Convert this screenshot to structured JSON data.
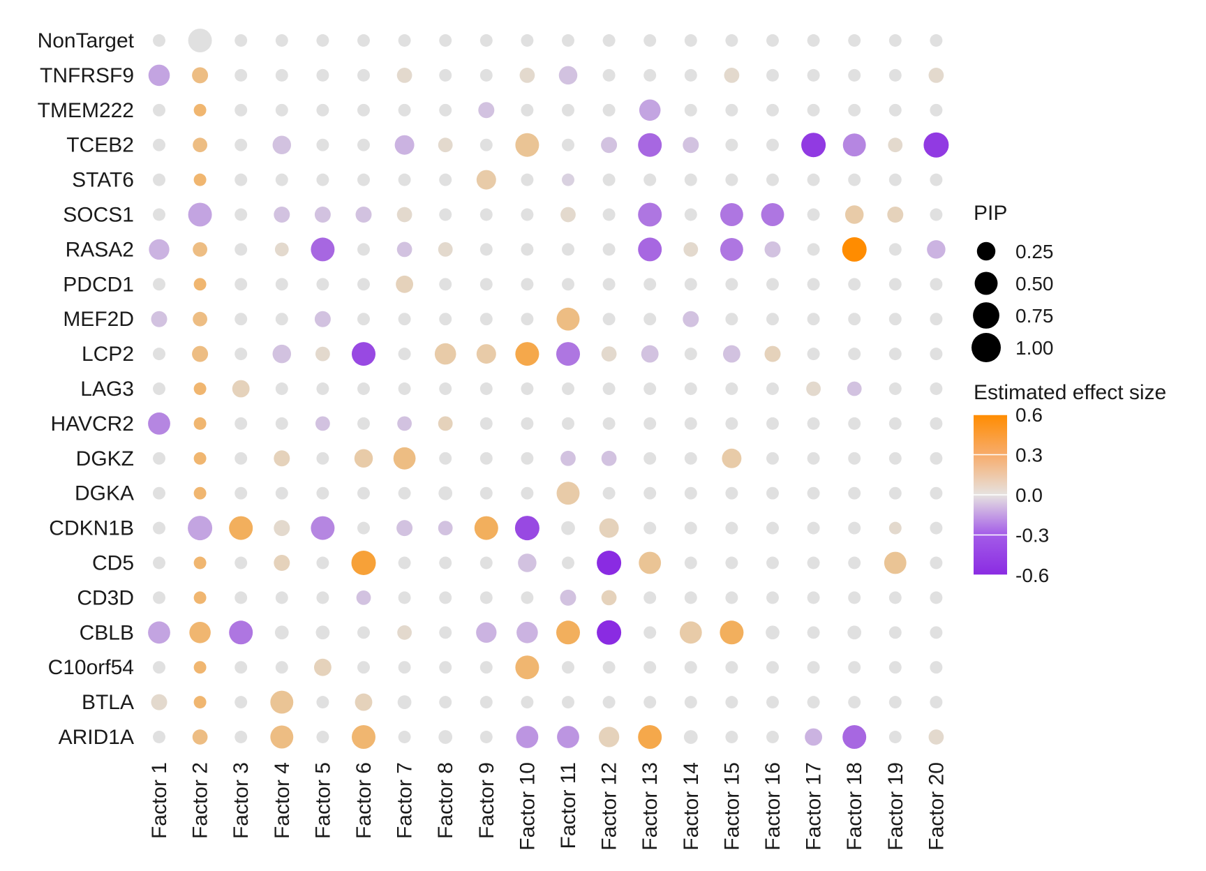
{
  "chart_data": {
    "type": "dot-heatmap",
    "x_categories": [
      "Factor 1",
      "Factor 2",
      "Factor 3",
      "Factor 4",
      "Factor 5",
      "Factor 6",
      "Factor 7",
      "Factor 8",
      "Factor 9",
      "Factor 10",
      "Factor 11",
      "Factor 12",
      "Factor 13",
      "Factor 14",
      "Factor 15",
      "Factor 16",
      "Factor 17",
      "Factor 18",
      "Factor 19",
      "Factor 20"
    ],
    "y_categories": [
      "NonTarget",
      "TNFRSF9",
      "TMEM222",
      "TCEB2",
      "STAT6",
      "SOCS1",
      "RASA2",
      "PDCD1",
      "MEF2D",
      "LCP2",
      "LAG3",
      "HAVCR2",
      "DGKZ",
      "DGKA",
      "CDKN1B",
      "CD5",
      "CD3D",
      "CBLB",
      "C10orf54",
      "BTLA",
      "ARID1A"
    ],
    "pip": [
      [
        0.05,
        0.55,
        0.05,
        0.05,
        0.05,
        0.05,
        0.05,
        0.05,
        0.05,
        0.05,
        0.05,
        0.05,
        0.05,
        0.05,
        0.05,
        0.05,
        0.05,
        0.05,
        0.05,
        0.05
      ],
      [
        0.4,
        0.15,
        0.05,
        0.05,
        0.05,
        0.05,
        0.12,
        0.05,
        0.05,
        0.12,
        0.25,
        0.05,
        0.05,
        0.05,
        0.12,
        0.05,
        0.05,
        0.05,
        0.05,
        0.12
      ],
      [
        0.05,
        0.05,
        0.05,
        0.05,
        0.05,
        0.05,
        0.05,
        0.05,
        0.15,
        0.05,
        0.05,
        0.05,
        0.4,
        0.05,
        0.05,
        0.05,
        0.05,
        0.05,
        0.05,
        0.05
      ],
      [
        0.05,
        0.1,
        0.05,
        0.25,
        0.05,
        0.05,
        0.3,
        0.1,
        0.05,
        0.55,
        0.05,
        0.15,
        0.55,
        0.15,
        0.05,
        0.05,
        0.6,
        0.5,
        0.1,
        0.65
      ],
      [
        0.05,
        0.05,
        0.05,
        0.05,
        0.05,
        0.05,
        0.05,
        0.05,
        0.3,
        0.05,
        0.05,
        0.05,
        0.05,
        0.05,
        0.05,
        0.05,
        0.05,
        0.05,
        0.05,
        0.05
      ],
      [
        0.05,
        0.55,
        0.05,
        0.15,
        0.15,
        0.15,
        0.12,
        0.05,
        0.05,
        0.05,
        0.12,
        0.05,
        0.55,
        0.05,
        0.5,
        0.5,
        0.05,
        0.25,
        0.15,
        0.05
      ],
      [
        0.35,
        0.1,
        0.05,
        0.08,
        0.55,
        0.05,
        0.12,
        0.1,
        0.05,
        0.05,
        0.05,
        0.05,
        0.55,
        0.1,
        0.5,
        0.15,
        0.05,
        0.6,
        0.05,
        0.25
      ],
      [
        0.05,
        0.05,
        0.05,
        0.05,
        0.05,
        0.05,
        0.2,
        0.05,
        0.05,
        0.05,
        0.05,
        0.05,
        0.05,
        0.05,
        0.05,
        0.05,
        0.05,
        0.05,
        0.05,
        0.05
      ],
      [
        0.15,
        0.1,
        0.05,
        0.05,
        0.15,
        0.05,
        0.05,
        0.05,
        0.05,
        0.05,
        0.5,
        0.05,
        0.05,
        0.15,
        0.05,
        0.05,
        0.05,
        0.05,
        0.05,
        0.05
      ],
      [
        0.05,
        0.15,
        0.05,
        0.25,
        0.1,
        0.55,
        0.05,
        0.4,
        0.3,
        0.55,
        0.55,
        0.12,
        0.2,
        0.05,
        0.2,
        0.15,
        0.05,
        0.05,
        0.05,
        0.05
      ],
      [
        0.05,
        0.05,
        0.2,
        0.05,
        0.05,
        0.05,
        0.05,
        0.05,
        0.05,
        0.05,
        0.05,
        0.05,
        0.05,
        0.05,
        0.05,
        0.05,
        0.1,
        0.1,
        0.05,
        0.05
      ],
      [
        0.45,
        0.05,
        0.05,
        0.05,
        0.1,
        0.05,
        0.1,
        0.1,
        0.05,
        0.05,
        0.05,
        0.05,
        0.05,
        0.05,
        0.05,
        0.05,
        0.05,
        0.05,
        0.05,
        0.05
      ],
      [
        0.05,
        0.05,
        0.05,
        0.15,
        0.05,
        0.25,
        0.45,
        0.05,
        0.05,
        0.05,
        0.12,
        0.12,
        0.05,
        0.05,
        0.3,
        0.05,
        0.05,
        0.05,
        0.05,
        0.05
      ],
      [
        0.05,
        0.05,
        0.05,
        0.05,
        0.05,
        0.05,
        0.05,
        0.08,
        0.05,
        0.05,
        0.5,
        0.05,
        0.05,
        0.05,
        0.05,
        0.05,
        0.05,
        0.05,
        0.05,
        0.05
      ],
      [
        0.05,
        0.6,
        0.55,
        0.15,
        0.55,
        0.05,
        0.15,
        0.1,
        0.55,
        0.6,
        0.08,
        0.3,
        0.05,
        0.05,
        0.05,
        0.05,
        0.05,
        0.05,
        0.05,
        0.05
      ],
      [
        0.05,
        0.05,
        0.05,
        0.15,
        0.05,
        0.6,
        0.05,
        0.05,
        0.05,
        0.25,
        0.05,
        0.6,
        0.45,
        0.05,
        0.05,
        0.05,
        0.05,
        0.05,
        0.45,
        0.05
      ],
      [
        0.05,
        0.05,
        0.05,
        0.05,
        0.05,
        0.1,
        0.05,
        0.05,
        0.05,
        0.05,
        0.15,
        0.12,
        0.05,
        0.05,
        0.05,
        0.05,
        0.05,
        0.05,
        0.05,
        0.05
      ],
      [
        0.45,
        0.4,
        0.55,
        0.08,
        0.08,
        0.05,
        0.1,
        0.05,
        0.35,
        0.4,
        0.55,
        0.6,
        0.05,
        0.45,
        0.55,
        0.08,
        0.05,
        0.08,
        0.05,
        0.05
      ],
      [
        0.05,
        0.05,
        0.05,
        0.05,
        0.2,
        0.05,
        0.05,
        0.05,
        0.05,
        0.55,
        0.05,
        0.05,
        0.05,
        0.05,
        0.05,
        0.05,
        0.05,
        0.05,
        0.05,
        0.05
      ],
      [
        0.15,
        0.05,
        0.05,
        0.5,
        0.05,
        0.2,
        0.08,
        0.05,
        0.05,
        0.05,
        0.05,
        0.05,
        0.05,
        0.05,
        0.05,
        0.05,
        0.05,
        0.05,
        0.05,
        0.05
      ],
      [
        0.05,
        0.12,
        0.05,
        0.5,
        0.05,
        0.55,
        0.05,
        0.08,
        0.05,
        0.45,
        0.45,
        0.35,
        0.55,
        0.08,
        0.05,
        0.05,
        0.2,
        0.55,
        0.05,
        0.12
      ]
    ],
    "effect": [
      [
        0,
        0,
        0,
        0,
        0,
        0,
        0,
        0,
        0,
        0,
        0,
        0,
        0,
        0,
        0,
        0,
        0,
        0,
        0,
        0
      ],
      [
        -0.2,
        0.25,
        0,
        0,
        0,
        0,
        0.05,
        0,
        0,
        0.05,
        -0.1,
        0,
        0,
        0,
        0.05,
        0,
        0,
        0,
        0,
        0.05
      ],
      [
        0,
        0.3,
        0,
        0,
        0,
        0,
        0,
        0,
        -0.1,
        0,
        0,
        0,
        -0.2,
        0,
        0,
        0,
        0,
        0,
        0,
        0
      ],
      [
        0,
        0.25,
        0,
        -0.1,
        0,
        0,
        -0.15,
        0.05,
        0,
        0.2,
        0,
        -0.1,
        -0.4,
        -0.1,
        0,
        0,
        -0.55,
        -0.3,
        0.05,
        -0.55
      ],
      [
        0,
        0.3,
        0,
        0,
        0,
        0,
        0,
        0,
        0.15,
        0,
        -0.05,
        0,
        0,
        0,
        0,
        0,
        0,
        0,
        0,
        0
      ],
      [
        0,
        -0.2,
        0,
        -0.1,
        -0.1,
        -0.1,
        0.05,
        0,
        0,
        0,
        0.05,
        0,
        -0.35,
        0,
        -0.35,
        -0.35,
        0,
        0.15,
        0.1,
        0
      ],
      [
        -0.15,
        0.25,
        0,
        0.05,
        -0.4,
        0,
        -0.1,
        0.05,
        0,
        0,
        0,
        0,
        -0.4,
        0.05,
        -0.35,
        -0.1,
        0,
        0.6,
        0,
        -0.15
      ],
      [
        0,
        0.3,
        0,
        0,
        0,
        0,
        0.1,
        0,
        0,
        0,
        0,
        0,
        0,
        0,
        0,
        0,
        0,
        0,
        0,
        0
      ],
      [
        -0.1,
        0.25,
        0,
        0,
        -0.1,
        0,
        0,
        0,
        0,
        0,
        0.25,
        0,
        0,
        -0.1,
        0,
        0,
        0,
        0,
        0,
        0
      ],
      [
        0,
        0.25,
        0,
        -0.1,
        0.05,
        -0.5,
        0,
        0.15,
        0.15,
        0.4,
        -0.35,
        0.05,
        -0.1,
        0,
        -0.1,
        0.1,
        0,
        0,
        0,
        0
      ],
      [
        0,
        0.3,
        0.1,
        0,
        0,
        0,
        0,
        0,
        0,
        0,
        0,
        0,
        0,
        0,
        0,
        0,
        0.05,
        -0.1,
        0,
        0
      ],
      [
        -0.3,
        0.3,
        0,
        0,
        -0.1,
        0,
        -0.1,
        0.1,
        0,
        0,
        0,
        0,
        0,
        0,
        0,
        0,
        0,
        0,
        0,
        0
      ],
      [
        0,
        0.3,
        0,
        0.1,
        0,
        0.15,
        0.25,
        0,
        0,
        0,
        -0.1,
        -0.1,
        0,
        0,
        0.15,
        0,
        0,
        0,
        0,
        0
      ],
      [
        0,
        0.3,
        0,
        0,
        0,
        0,
        0,
        0,
        0,
        0,
        0.15,
        0,
        0,
        0,
        0,
        0,
        0,
        0,
        0,
        0
      ],
      [
        0,
        -0.2,
        0.35,
        0.05,
        -0.3,
        0,
        -0.1,
        -0.1,
        0.35,
        -0.5,
        0,
        0.1,
        0,
        0,
        0,
        0,
        0,
        0,
        0.05,
        0
      ],
      [
        0,
        0.3,
        0,
        0.1,
        0,
        0.45,
        0,
        0,
        0,
        -0.1,
        0,
        -0.6,
        0.2,
        0,
        0,
        0,
        0,
        0,
        0.2,
        0
      ],
      [
        0,
        0.3,
        0,
        0,
        0,
        -0.1,
        0,
        0,
        0,
        0,
        -0.1,
        0.1,
        0,
        0,
        0,
        0,
        0,
        0,
        0,
        0
      ],
      [
        -0.2,
        0.3,
        -0.35,
        0,
        0,
        0,
        0.05,
        0,
        -0.15,
        -0.15,
        0.35,
        -0.6,
        0,
        0.15,
        0.35,
        0,
        0,
        0,
        0,
        0
      ],
      [
        0,
        0.3,
        0,
        0,
        0.1,
        0,
        0,
        0,
        0,
        0.3,
        0,
        0,
        0,
        0,
        0,
        0,
        0,
        0,
        0,
        0
      ],
      [
        0.05,
        0.3,
        0,
        0.2,
        0,
        0.1,
        0,
        0,
        0,
        0,
        0,
        0,
        0,
        0,
        0,
        0,
        0,
        0,
        0,
        0
      ],
      [
        0,
        0.25,
        0,
        0.25,
        0,
        0.3,
        0,
        0,
        0,
        -0.25,
        -0.25,
        0.1,
        0.4,
        0,
        0,
        0,
        -0.15,
        -0.4,
        0,
        0.05
      ]
    ],
    "legend": {
      "size_title": "PIP",
      "size_values": [
        0.25,
        0.5,
        0.75,
        1.0
      ],
      "size_labels": [
        "0.25",
        "0.50",
        "0.75",
        "1.00"
      ],
      "color_title": "Estimated effect size",
      "color_ticks": [
        0.6,
        0.3,
        0.0,
        -0.3,
        -0.6
      ],
      "color_tick_labels": [
        "0.6",
        "0.3",
        "0.0",
        "-0.3",
        "-0.6"
      ],
      "color_range": [
        -0.6,
        0.6
      ]
    },
    "colors": {
      "low": "#8a2be2",
      "mid": "#e0e0e0",
      "high": "#ff8c00"
    }
  }
}
